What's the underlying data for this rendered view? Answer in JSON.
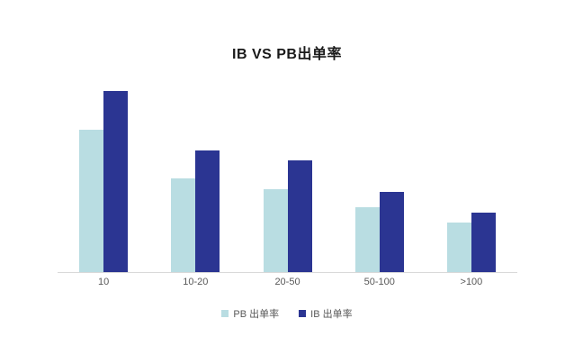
{
  "chart_data": {
    "type": "bar",
    "title": "IB VS PB出单率",
    "categories": [
      "10",
      "10-20",
      "20-50",
      "50-100",
      ">100"
    ],
    "series": [
      {
        "name": "PB 出单率",
        "color": "#b9dde2",
        "values": [
          55,
          36,
          32,
          25,
          19
        ]
      },
      {
        "name": "IB 出单率",
        "color": "#2b3592",
        "values": [
          70,
          47,
          43,
          31,
          23
        ]
      }
    ],
    "xlabel": "",
    "ylabel": "",
    "ylim": [
      0,
      80
    ],
    "grid": false,
    "legend_position": "bottom",
    "y_axis_labels_visible": false
  },
  "legend": {
    "pb_label": "PB 出单率",
    "ib_label": "IB 出单率"
  },
  "colors": {
    "pb_bar": "#b9dde2",
    "ib_bar": "#2b3592",
    "axis_line": "#d9d9d9",
    "label_text": "#595959",
    "title_text": "#1a1a1a"
  }
}
